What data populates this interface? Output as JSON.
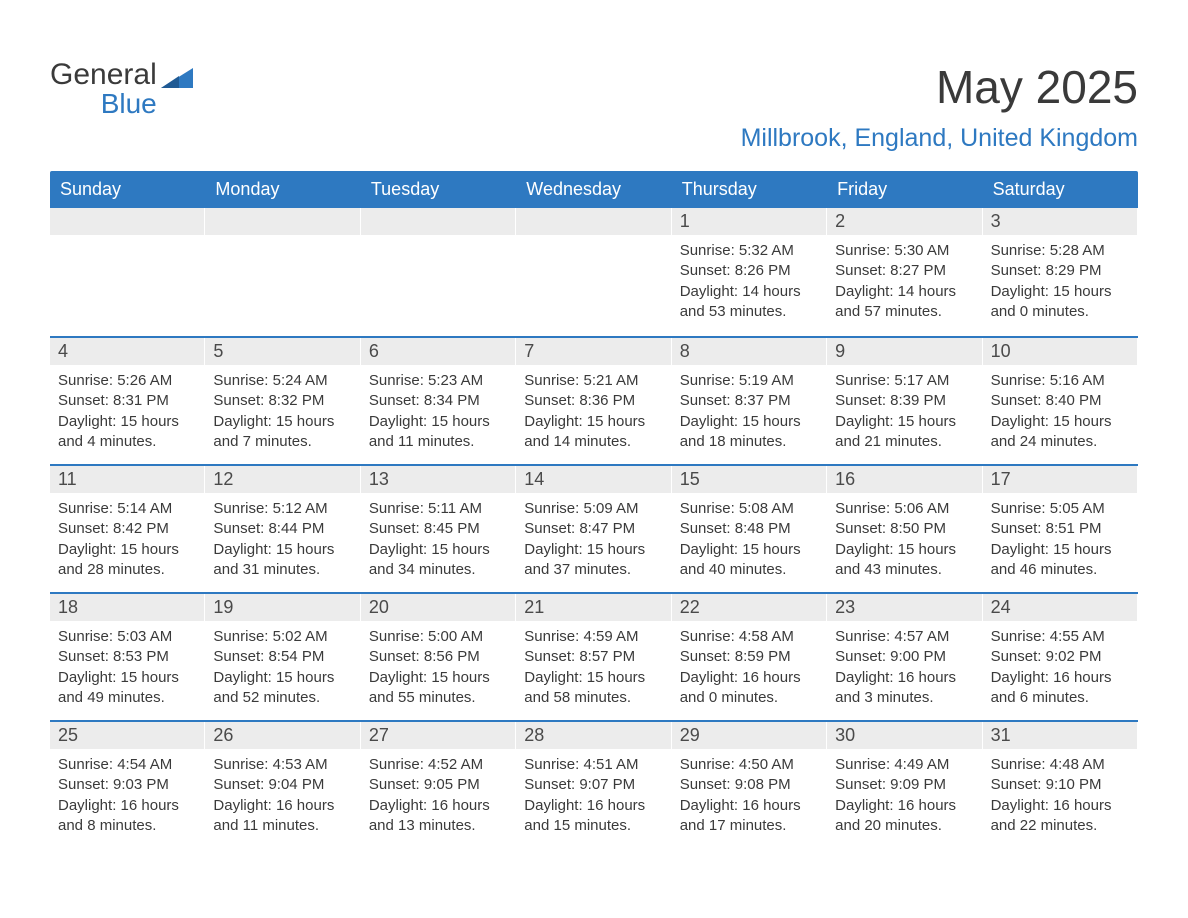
{
  "logo": {
    "text1": "General",
    "text2": "Blue"
  },
  "title": "May 2025",
  "location": "Millbrook, England, United Kingdom",
  "colors": {
    "header_bg": "#2e79c1",
    "header_text": "#ffffff",
    "row_divider": "#2e79c1",
    "daynum_bg": "#ececec",
    "body_text": "#3a3a3a",
    "page_bg": "#ffffff"
  },
  "typography": {
    "title_fontsize": 46,
    "location_fontsize": 25,
    "dow_fontsize": 18,
    "daynum_fontsize": 18,
    "body_fontsize": 15,
    "font_family": "Arial"
  },
  "layout": {
    "columns": 7,
    "rows": 5,
    "start_day_index": 4,
    "days_in_month": 31
  },
  "days_of_week": [
    "Sunday",
    "Monday",
    "Tuesday",
    "Wednesday",
    "Thursday",
    "Friday",
    "Saturday"
  ],
  "days": [
    {
      "n": 1,
      "sunrise": "5:32 AM",
      "sunset": "8:26 PM",
      "daylight": "14 hours and 53 minutes."
    },
    {
      "n": 2,
      "sunrise": "5:30 AM",
      "sunset": "8:27 PM",
      "daylight": "14 hours and 57 minutes."
    },
    {
      "n": 3,
      "sunrise": "5:28 AM",
      "sunset": "8:29 PM",
      "daylight": "15 hours and 0 minutes."
    },
    {
      "n": 4,
      "sunrise": "5:26 AM",
      "sunset": "8:31 PM",
      "daylight": "15 hours and 4 minutes."
    },
    {
      "n": 5,
      "sunrise": "5:24 AM",
      "sunset": "8:32 PM",
      "daylight": "15 hours and 7 minutes."
    },
    {
      "n": 6,
      "sunrise": "5:23 AM",
      "sunset": "8:34 PM",
      "daylight": "15 hours and 11 minutes."
    },
    {
      "n": 7,
      "sunrise": "5:21 AM",
      "sunset": "8:36 PM",
      "daylight": "15 hours and 14 minutes."
    },
    {
      "n": 8,
      "sunrise": "5:19 AM",
      "sunset": "8:37 PM",
      "daylight": "15 hours and 18 minutes."
    },
    {
      "n": 9,
      "sunrise": "5:17 AM",
      "sunset": "8:39 PM",
      "daylight": "15 hours and 21 minutes."
    },
    {
      "n": 10,
      "sunrise": "5:16 AM",
      "sunset": "8:40 PM",
      "daylight": "15 hours and 24 minutes."
    },
    {
      "n": 11,
      "sunrise": "5:14 AM",
      "sunset": "8:42 PM",
      "daylight": "15 hours and 28 minutes."
    },
    {
      "n": 12,
      "sunrise": "5:12 AM",
      "sunset": "8:44 PM",
      "daylight": "15 hours and 31 minutes."
    },
    {
      "n": 13,
      "sunrise": "5:11 AM",
      "sunset": "8:45 PM",
      "daylight": "15 hours and 34 minutes."
    },
    {
      "n": 14,
      "sunrise": "5:09 AM",
      "sunset": "8:47 PM",
      "daylight": "15 hours and 37 minutes."
    },
    {
      "n": 15,
      "sunrise": "5:08 AM",
      "sunset": "8:48 PM",
      "daylight": "15 hours and 40 minutes."
    },
    {
      "n": 16,
      "sunrise": "5:06 AM",
      "sunset": "8:50 PM",
      "daylight": "15 hours and 43 minutes."
    },
    {
      "n": 17,
      "sunrise": "5:05 AM",
      "sunset": "8:51 PM",
      "daylight": "15 hours and 46 minutes."
    },
    {
      "n": 18,
      "sunrise": "5:03 AM",
      "sunset": "8:53 PM",
      "daylight": "15 hours and 49 minutes."
    },
    {
      "n": 19,
      "sunrise": "5:02 AM",
      "sunset": "8:54 PM",
      "daylight": "15 hours and 52 minutes."
    },
    {
      "n": 20,
      "sunrise": "5:00 AM",
      "sunset": "8:56 PM",
      "daylight": "15 hours and 55 minutes."
    },
    {
      "n": 21,
      "sunrise": "4:59 AM",
      "sunset": "8:57 PM",
      "daylight": "15 hours and 58 minutes."
    },
    {
      "n": 22,
      "sunrise": "4:58 AM",
      "sunset": "8:59 PM",
      "daylight": "16 hours and 0 minutes."
    },
    {
      "n": 23,
      "sunrise": "4:57 AM",
      "sunset": "9:00 PM",
      "daylight": "16 hours and 3 minutes."
    },
    {
      "n": 24,
      "sunrise": "4:55 AM",
      "sunset": "9:02 PM",
      "daylight": "16 hours and 6 minutes."
    },
    {
      "n": 25,
      "sunrise": "4:54 AM",
      "sunset": "9:03 PM",
      "daylight": "16 hours and 8 minutes."
    },
    {
      "n": 26,
      "sunrise": "4:53 AM",
      "sunset": "9:04 PM",
      "daylight": "16 hours and 11 minutes."
    },
    {
      "n": 27,
      "sunrise": "4:52 AM",
      "sunset": "9:05 PM",
      "daylight": "16 hours and 13 minutes."
    },
    {
      "n": 28,
      "sunrise": "4:51 AM",
      "sunset": "9:07 PM",
      "daylight": "16 hours and 15 minutes."
    },
    {
      "n": 29,
      "sunrise": "4:50 AM",
      "sunset": "9:08 PM",
      "daylight": "16 hours and 17 minutes."
    },
    {
      "n": 30,
      "sunrise": "4:49 AM",
      "sunset": "9:09 PM",
      "daylight": "16 hours and 20 minutes."
    },
    {
      "n": 31,
      "sunrise": "4:48 AM",
      "sunset": "9:10 PM",
      "daylight": "16 hours and 22 minutes."
    }
  ],
  "labels": {
    "sunrise": "Sunrise:",
    "sunset": "Sunset:",
    "daylight": "Daylight:"
  }
}
